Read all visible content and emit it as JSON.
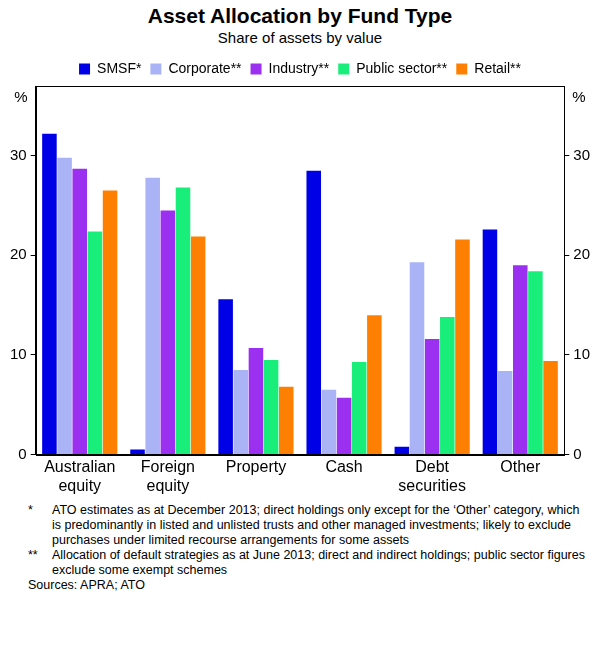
{
  "chart_data": {
    "type": "bar",
    "title": "Asset Allocation by Fund Type",
    "subtitle": "Share of assets by value",
    "y_label": "%",
    "categories": [
      "Australian equity",
      "Foreign equity",
      "Property",
      "Cash",
      "Debt securities",
      "Other"
    ],
    "series": [
      {
        "name": "SMSF*",
        "color": "#0000e6",
        "values": [
          32.2,
          0.5,
          15.6,
          28.5,
          0.8,
          22.6
        ]
      },
      {
        "name": "Corporate**",
        "color": "#a9b3f5",
        "values": [
          29.8,
          27.8,
          8.5,
          6.5,
          19.3,
          8.4
        ]
      },
      {
        "name": "Industry**",
        "color": "#9b30f0",
        "values": [
          28.7,
          24.5,
          10.7,
          5.7,
          11.6,
          19.0
        ]
      },
      {
        "name": "Public sector**",
        "color": "#1aee7a",
        "values": [
          22.4,
          26.8,
          9.5,
          9.3,
          13.8,
          18.4
        ]
      },
      {
        "name": "Retail**",
        "color": "#ff8000",
        "values": [
          26.5,
          21.9,
          6.8,
          14.0,
          21.6,
          9.4
        ]
      }
    ],
    "ylim": [
      0,
      37
    ],
    "yticks": [
      0,
      10,
      20,
      30
    ],
    "y2lim": [
      0,
      37
    ],
    "y2ticks": [
      0,
      10,
      20,
      30
    ],
    "grid": false,
    "legend": "top",
    "notes": [
      {
        "marker": "*",
        "text": "ATO estimates as at December 2013; direct holdings only except for the ‘Other’ category, which is predominantly in listed and unlisted trusts and other managed investments; likely to exclude purchases under limited recourse arrangements for some assets"
      },
      {
        "marker": "**",
        "text": "Allocation of default strategies as at June 2013; direct and indirect holdings; public sector figures exclude some exempt schemes"
      }
    ],
    "sources": "Sources: APRA; ATO"
  }
}
